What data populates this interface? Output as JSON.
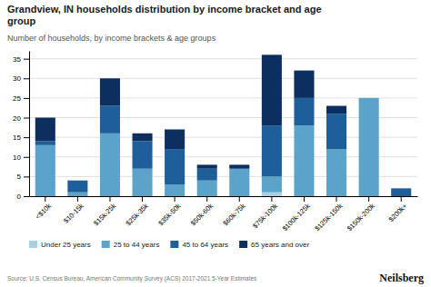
{
  "chart_data": {
    "type": "bar",
    "stacked": true,
    "title": "Grandview, IN households distribution by income bracket and age\ngroup",
    "subtitle": "Number of households, by income brackets & age groups",
    "categories": [
      "<$10k",
      "$10-15k",
      "$15k-25k",
      "$25k-35k",
      "$35k-50k",
      "$50k-60k",
      "$60k-75k",
      "$75k-100k",
      "$100k-125k",
      "$125k-150k",
      "$150k-200k",
      "$200k+"
    ],
    "series": [
      {
        "name": "Under 25 years",
        "color": "#a8d0e0",
        "values": [
          0,
          0,
          0,
          0,
          0,
          0,
          0,
          1,
          0,
          0,
          0,
          0
        ]
      },
      {
        "name": "25 to 44 years",
        "color": "#5ba3c9",
        "values": [
          13,
          1,
          16,
          7,
          3,
          4,
          7,
          4,
          18,
          12,
          25,
          0
        ]
      },
      {
        "name": "45 to 64 years",
        "color": "#1e5f99",
        "values": [
          1,
          3,
          7,
          7,
          9,
          3,
          0,
          13,
          7,
          9,
          0,
          2
        ]
      },
      {
        "name": "65 years and over",
        "color": "#0d2f60",
        "values": [
          6,
          0,
          7,
          2,
          5,
          1,
          1,
          18,
          7,
          2,
          0,
          0
        ]
      }
    ],
    "ylim": [
      0,
      37
    ],
    "yticks": [
      0,
      5,
      10,
      15,
      20,
      25,
      30,
      35
    ],
    "grid": true,
    "legend": "bottom",
    "annotations": [
      "Source: U.S. Census Bureau, American Community Survey (ACS) 2017-2021 5-Year Estimates",
      "Neilsberg"
    ]
  }
}
